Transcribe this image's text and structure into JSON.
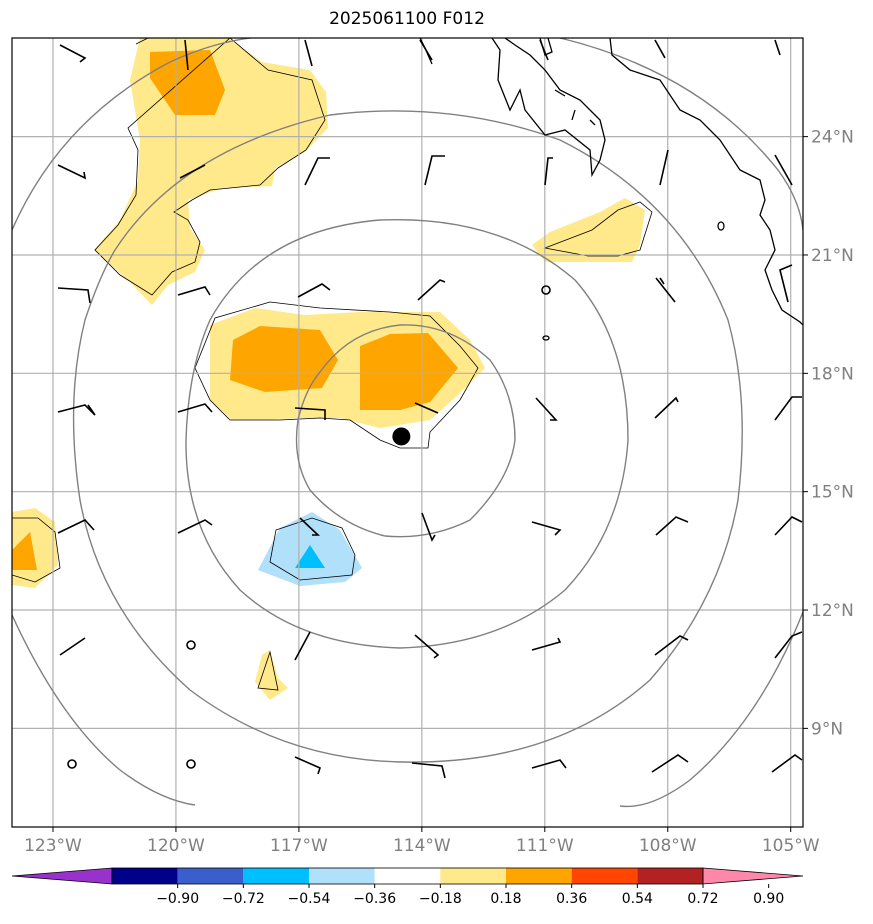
{
  "title": "2025061100 F012",
  "map": {
    "lon_range": [
      -124.0,
      -104.7
    ],
    "lat_range": [
      6.5,
      26.5
    ],
    "lon_ticks": [
      {
        "value": -123,
        "label": "123°W"
      },
      {
        "value": -120,
        "label": "120°W"
      },
      {
        "value": -117,
        "label": "117°W"
      },
      {
        "value": -114,
        "label": "114°W"
      },
      {
        "value": -111,
        "label": "111°W"
      },
      {
        "value": -108,
        "label": "108°W"
      },
      {
        "value": -105,
        "label": "105°W"
      }
    ],
    "lat_ticks": [
      {
        "value": 24,
        "label": "24°N"
      },
      {
        "value": 21,
        "label": "21°N"
      },
      {
        "value": 18,
        "label": "18°N"
      },
      {
        "value": 15,
        "label": "15°N"
      },
      {
        "value": 12,
        "label": "12°N"
      },
      {
        "value": 9,
        "label": "9°N"
      }
    ],
    "storm_center": {
      "lon": -114.5,
      "lat": 16.4
    },
    "range_rings": "concentric rings around storm center",
    "grid": true,
    "colors": {
      "coastline": "#000000",
      "grid": "#b0b0b0",
      "rings": "#808080",
      "tick_text": "#808080"
    }
  },
  "colorbar": {
    "levels": [
      "−0.90",
      "−0.72",
      "−0.54",
      "−0.36",
      "−0.18",
      "0.18",
      "0.36",
      "0.54",
      "0.72",
      "0.90"
    ],
    "colors": [
      "#9932cc",
      "#00008b",
      "#3a5fcd",
      "#00bfff",
      "#b0e0fa",
      "#ffffff",
      "#ffe98a",
      "#ffa500",
      "#ff4500",
      "#b22222",
      "#ff88aa"
    ],
    "extend": "both"
  }
}
